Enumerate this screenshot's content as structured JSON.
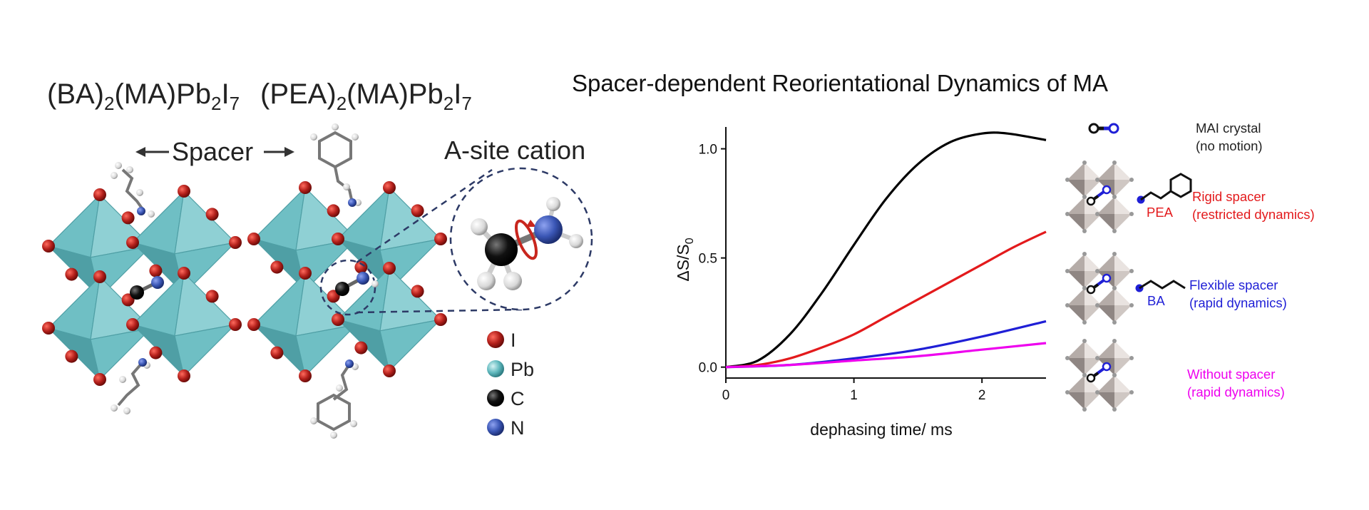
{
  "left": {
    "formula_ba": {
      "p1": "(BA)",
      "s1": "2",
      "p2": "(MA)Pb",
      "s2": "2",
      "p3": "I",
      "s3": "7"
    },
    "formula_pea": {
      "p1": "(PEA)",
      "s1": "2",
      "p2": "(MA)Pb",
      "s2": "2",
      "p3": "I",
      "s3": "7"
    },
    "spacer_label": "Spacer",
    "asite_label": "A-site cation",
    "legend": [
      {
        "symbol": "I",
        "color": "#b3201b"
      },
      {
        "symbol": "Pb",
        "color": "#5fb8bd"
      },
      {
        "symbol": "C",
        "color": "#111111"
      },
      {
        "symbol": "N",
        "color": "#3a56b5"
      }
    ],
    "colors": {
      "octahedron": "#6fbfc4",
      "octahedron_dark": "#4f9fa5",
      "iodine": "#b3201b"
    }
  },
  "chart_data": {
    "type": "line",
    "title": "Spacer-dependent Reorientational Dynamics of MA",
    "xlabel": "dephasing time/ ms",
    "ylabel": {
      "main": "ΔS/S",
      "sub": "0"
    },
    "xlim": [
      0,
      2.5
    ],
    "ylim": [
      -0.05,
      1.1
    ],
    "xticks": [
      "0",
      "1",
      "2"
    ],
    "yticks": [
      "0.0",
      "0.5",
      "1.0"
    ],
    "grid": false,
    "series": [
      {
        "color": "#000000",
        "x": [
          0,
          0.25,
          0.5,
          0.75,
          1.0,
          1.25,
          1.5,
          1.75,
          2.0,
          2.2,
          2.5
        ],
        "y": [
          0,
          0.03,
          0.15,
          0.34,
          0.56,
          0.77,
          0.93,
          1.03,
          1.07,
          1.07,
          1.04
        ]
      },
      {
        "color": "#e31a1c",
        "x": [
          0,
          0.25,
          0.5,
          0.75,
          1.0,
          1.25,
          1.5,
          1.75,
          2.0,
          2.25,
          2.5
        ],
        "y": [
          0,
          0.01,
          0.04,
          0.09,
          0.15,
          0.23,
          0.31,
          0.39,
          0.47,
          0.55,
          0.62
        ]
      },
      {
        "color": "#1f1fd6",
        "x": [
          0,
          0.5,
          1.0,
          1.5,
          2.0,
          2.5
        ],
        "y": [
          0,
          0.01,
          0.04,
          0.08,
          0.14,
          0.21
        ]
      },
      {
        "color": "#ee00ee",
        "x": [
          0,
          0.5,
          1.0,
          1.5,
          2.0,
          2.5
        ],
        "y": [
          0,
          0.01,
          0.03,
          0.05,
          0.08,
          0.11
        ]
      }
    ]
  },
  "annotations": [
    {
      "lines": [
        "MAI crystal",
        "(no motion)"
      ],
      "color": "#222222"
    },
    {
      "lines": [
        "Rigid spacer",
        "(restricted dynamics)"
      ],
      "color": "#e31a1c"
    },
    {
      "lines": [
        "Flexible spacer",
        "(rapid dynamics)"
      ],
      "color": "#1f1fd6"
    },
    {
      "lines": [
        "Without spacer",
        "(rapid dynamics)"
      ],
      "color": "#ee00ee"
    }
  ],
  "spacer_tags": {
    "pea": "PEA",
    "ba": "BA"
  },
  "icons": [
    "ma-cation-icon",
    "phenethylamine-icon",
    "butylamine-icon",
    "octahedra-stack-icon"
  ]
}
